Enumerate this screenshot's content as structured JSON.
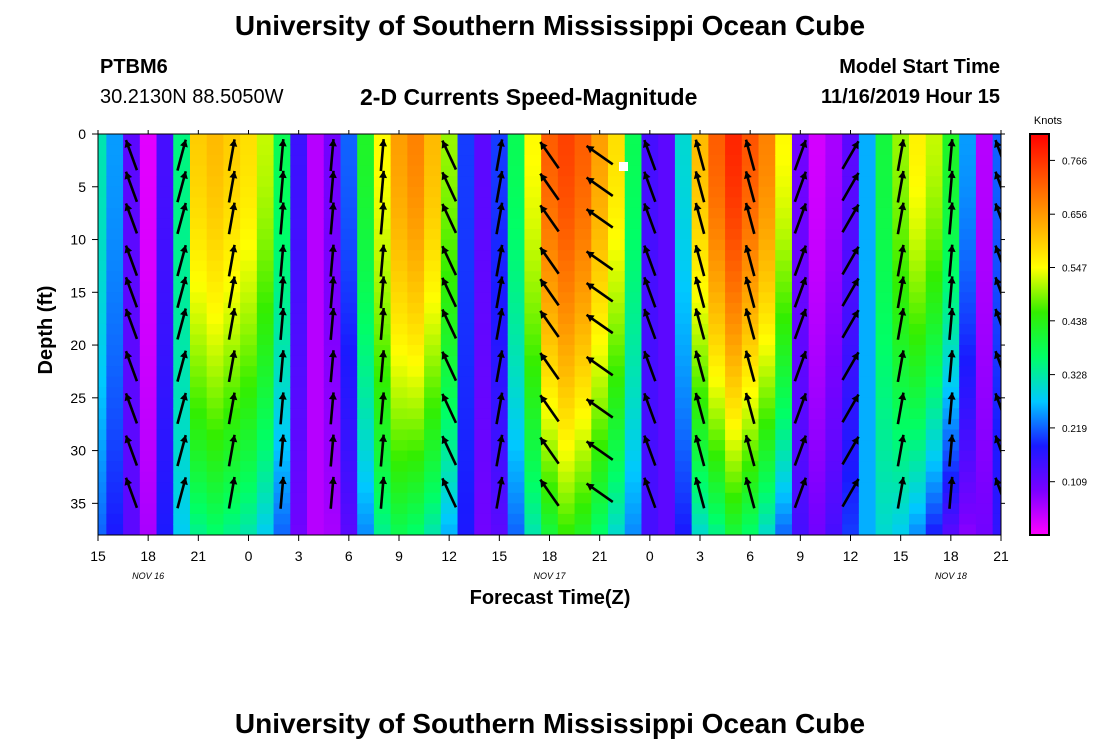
{
  "page": {
    "title_top": "University of Southern Mississippi Ocean Cube",
    "title_bottom": "University of Southern Mississippi Ocean Cube",
    "station": "PTBM6",
    "coords": "30.2130N 88.5050W",
    "chart_title": "2-D Currents Speed-Magnitude",
    "model_start_label": "Model Start Time",
    "model_start_value": "11/16/2019 Hour 15"
  },
  "colorbar": {
    "unit": "Knots",
    "ticks": [
      "0.766",
      "0.656",
      "0.547",
      "0.438",
      "0.328",
      "0.219",
      "0.109"
    ],
    "colors": [
      "#ff00ff",
      "#7a00ff",
      "#1a1aff",
      "#00c8ff",
      "#00ff66",
      "#33ee00",
      "#ffff00",
      "#ffaa00",
      "#ff5500",
      "#ff0000"
    ]
  },
  "chart_data": {
    "type": "heatmap",
    "title": "2-D Currents Speed-Magnitude",
    "xlabel": "Forecast Time(Z)",
    "ylabel": "Depth (ft)",
    "xticks": [
      "15",
      "18",
      "21",
      "0",
      "3",
      "6",
      "9",
      "12",
      "15",
      "18",
      "21",
      "0",
      "3",
      "6",
      "9",
      "12",
      "15",
      "18",
      "21"
    ],
    "yticks": [
      "0",
      "5",
      "10",
      "15",
      "20",
      "25",
      "30",
      "35"
    ],
    "ylim": [
      0,
      38
    ],
    "date_labels": [
      {
        "text": "NOV 16",
        "hour": 3
      },
      {
        "text": "NOV 17",
        "hour": 27
      },
      {
        "text": "NOV 18",
        "hour": 51
      }
    ],
    "xrange_hours": [
      0,
      54
    ],
    "value_range_knots": [
      0.0,
      0.82
    ],
    "speed_profile": {
      "hours": [
        0,
        1,
        2,
        3,
        4,
        5,
        6,
        7,
        8,
        9,
        10,
        11,
        12,
        13,
        14,
        15,
        16,
        17,
        18,
        19,
        20,
        21,
        22,
        23,
        24,
        25,
        26,
        27,
        28,
        29,
        30,
        31,
        32,
        33,
        34,
        35,
        36,
        37,
        38,
        39,
        40,
        41,
        42,
        43,
        44,
        45,
        46,
        47,
        48,
        49,
        50,
        51,
        52,
        53,
        54
      ],
      "surface": [
        0.32,
        0.25,
        0.12,
        0.02,
        0.14,
        0.35,
        0.6,
        0.62,
        0.6,
        0.58,
        0.52,
        0.38,
        0.15,
        0.05,
        0.1,
        0.22,
        0.42,
        0.55,
        0.65,
        0.68,
        0.62,
        0.5,
        0.2,
        0.12,
        0.2,
        0.38,
        0.55,
        0.72,
        0.75,
        0.72,
        0.65,
        0.58,
        0.38,
        0.14,
        0.12,
        0.3,
        0.62,
        0.72,
        0.78,
        0.73,
        0.68,
        0.55,
        0.1,
        0.03,
        0.06,
        0.12,
        0.26,
        0.4,
        0.5,
        0.56,
        0.52,
        0.42,
        0.25,
        0.05,
        0.22
      ],
      "bottom": [
        0.22,
        0.18,
        0.12,
        0.06,
        0.18,
        0.28,
        0.34,
        0.36,
        0.34,
        0.32,
        0.28,
        0.22,
        0.1,
        0.05,
        0.06,
        0.12,
        0.24,
        0.34,
        0.38,
        0.36,
        0.32,
        0.26,
        0.18,
        0.1,
        0.12,
        0.22,
        0.32,
        0.4,
        0.45,
        0.42,
        0.36,
        0.3,
        0.24,
        0.14,
        0.12,
        0.18,
        0.3,
        0.34,
        0.4,
        0.36,
        0.3,
        0.22,
        0.14,
        0.1,
        0.14,
        0.2,
        0.26,
        0.3,
        0.28,
        0.24,
        0.18,
        0.12,
        0.08,
        0.1,
        0.16
      ]
    },
    "vector_columns_hours": [
      2,
      5,
      8,
      11,
      14,
      17,
      21,
      24,
      27,
      30,
      33,
      36,
      39,
      42,
      45,
      48,
      51,
      54
    ],
    "vector_depths_ft": [
      2,
      5,
      8,
      12,
      15,
      18,
      22,
      26,
      30,
      34
    ],
    "vector_angles_deg": [
      -20,
      15,
      10,
      5,
      5,
      5,
      -25,
      10,
      -35,
      -55,
      -20,
      -15,
      -15,
      20,
      30,
      10,
      5,
      -20
    ]
  }
}
